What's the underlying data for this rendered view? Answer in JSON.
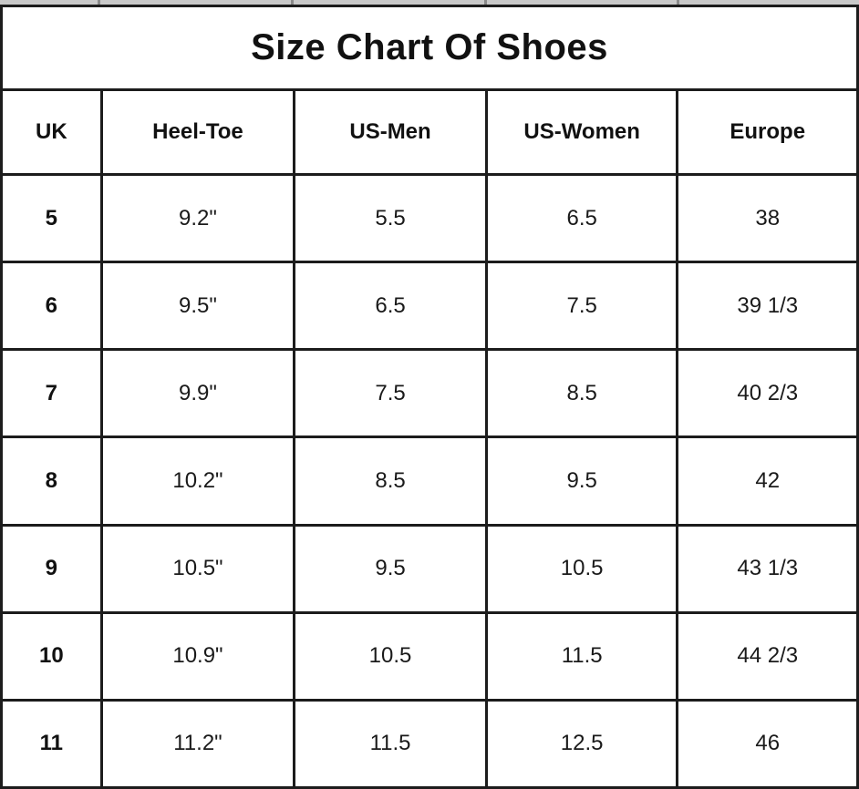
{
  "chart_data": {
    "type": "table",
    "title": "Size Chart Of Shoes",
    "columns": [
      "UK",
      "Heel-Toe",
      "US-Men",
      "US-Women",
      "Europe"
    ],
    "rows": [
      [
        "5",
        "9.2\"",
        "5.5",
        "6.5",
        "38"
      ],
      [
        "6",
        "9.5\"",
        "6.5",
        "7.5",
        "39 1/3"
      ],
      [
        "7",
        "9.9\"",
        "7.5",
        "8.5",
        "40 2/3"
      ],
      [
        "8",
        "10.2\"",
        "8.5",
        "9.5",
        "42"
      ],
      [
        "9",
        "10.5\"",
        "9.5",
        "10.5",
        "43 1/3"
      ],
      [
        "10",
        "10.9\"",
        "10.5",
        "11.5",
        "44 2/3"
      ],
      [
        "11",
        "11.2\"",
        "11.5",
        "12.5",
        "46"
      ]
    ],
    "layout": {
      "grid": "on",
      "header_row": true,
      "title_position": "top-center"
    }
  },
  "colors": {
    "border": "#1c1c1c",
    "text": "#1a1a1a",
    "background": "#ffffff",
    "top_strip": "#c9c9c9"
  }
}
